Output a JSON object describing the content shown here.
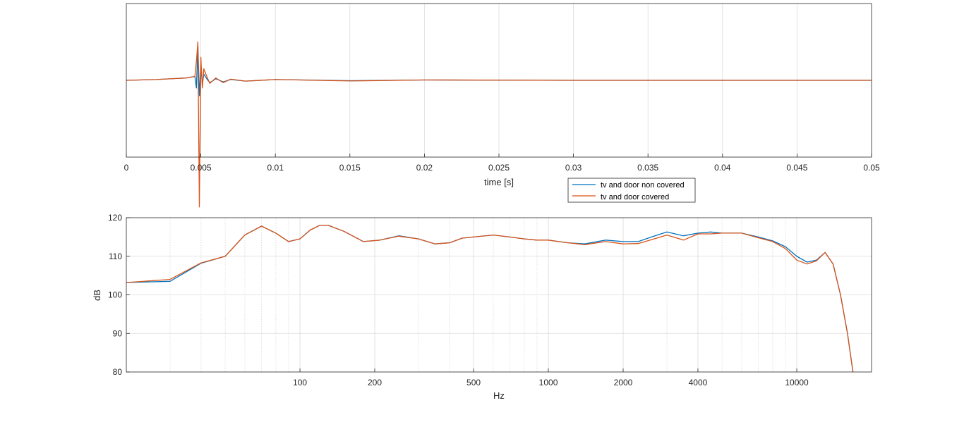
{
  "chart_data": [
    {
      "type": "line",
      "title": "",
      "xlabel": "time [s]",
      "ylabel": "",
      "xlim": [
        0,
        0.05
      ],
      "ylim": [
        -1,
        1
      ],
      "xscale": "linear",
      "grid": true,
      "xticks": [
        0,
        0.005,
        0.01,
        0.015,
        0.02,
        0.025,
        0.03,
        0.035,
        0.04,
        0.045,
        0.05
      ],
      "xtick_labels": [
        "0",
        "0.005",
        "0.01",
        "0.015",
        "0.02",
        "0.025",
        "0.03",
        "0.035",
        "0.04",
        "0.045",
        "0.05"
      ],
      "yticks_visible": false,
      "series": [
        {
          "name": "tv and door non covered",
          "color": "#0072BD",
          "x": [
            0,
            0.002,
            0.004,
            0.0046,
            0.0047,
            0.0048,
            0.0049,
            0.005,
            0.0051,
            0.0052,
            0.0054,
            0.0056,
            0.006,
            0.0065,
            0.007,
            0.008,
            0.01,
            0.015,
            0.02,
            0.03,
            0.05
          ],
          "y": [
            0,
            0.01,
            0.03,
            0.05,
            -0.1,
            0.45,
            -0.2,
            0.2,
            -0.05,
            0.08,
            0.02,
            -0.03,
            0.02,
            -0.02,
            0.01,
            -0.01,
            0.01,
            -0.005,
            0.005,
            0,
            0
          ]
        },
        {
          "name": "tv and door covered",
          "color": "#D95319",
          "x": [
            0,
            0.002,
            0.004,
            0.0046,
            0.0047,
            0.0048,
            0.0049,
            0.005,
            0.0051,
            0.0052,
            0.0054,
            0.0056,
            0.006,
            0.0065,
            0.007,
            0.008,
            0.01,
            0.015,
            0.02,
            0.03,
            0.05
          ],
          "y": [
            0,
            0.01,
            0.03,
            0.05,
            0.25,
            0.5,
            -1.65,
            0.3,
            -0.1,
            0.15,
            0.05,
            -0.04,
            0.03,
            -0.03,
            0.015,
            -0.01,
            0.01,
            -0.008,
            0.005,
            0,
            0
          ]
        }
      ]
    },
    {
      "type": "line",
      "title": "",
      "xlabel": "Hz",
      "ylabel": "dB",
      "xlim": [
        20,
        20000
      ],
      "ylim": [
        80,
        120
      ],
      "xscale": "log",
      "grid": true,
      "xticks": [
        100,
        200,
        500,
        1000,
        2000,
        4000,
        10000
      ],
      "xtick_labels": [
        "100",
        "200",
        "500",
        "1000",
        "2000",
        "4000",
        "10000"
      ],
      "yticks": [
        80,
        90,
        100,
        110,
        120
      ],
      "ytick_labels": [
        "80",
        "90",
        "100",
        "110",
        "120"
      ],
      "series": [
        {
          "name": "tv and door non covered",
          "color": "#0072BD",
          "x": [
            20,
            30,
            40,
            50,
            60,
            70,
            80,
            90,
            100,
            110,
            120,
            130,
            150,
            180,
            210,
            250,
            300,
            350,
            400,
            450,
            500,
            600,
            700,
            800,
            900,
            1000,
            1100,
            1200,
            1400,
            1700,
            2000,
            2300,
            2600,
            3000,
            3500,
            4000,
            4500,
            5000,
            6000,
            7000,
            8000,
            9000,
            10000,
            11000,
            12000,
            13000,
            14000,
            15000,
            16000,
            17000
          ],
          "y": [
            103.2,
            103.5,
            108.2,
            110.0,
            115.5,
            117.8,
            116.0,
            113.8,
            114.5,
            116.8,
            118.0,
            118.0,
            116.5,
            113.8,
            114.2,
            115.3,
            114.5,
            113.2,
            113.5,
            114.7,
            115.0,
            115.5,
            115.0,
            114.5,
            114.2,
            114.2,
            113.8,
            113.5,
            113.2,
            114.2,
            113.8,
            113.8,
            115.0,
            116.3,
            115.3,
            116.0,
            116.3,
            116.0,
            116.0,
            115.0,
            114.0,
            112.5,
            110.0,
            108.5,
            109.0,
            111.0,
            108.0,
            100.0,
            90.0,
            78.0
          ]
        },
        {
          "name": "tv and door covered",
          "color": "#D95319",
          "x": [
            20,
            30,
            40,
            50,
            60,
            70,
            80,
            90,
            100,
            110,
            120,
            130,
            150,
            180,
            210,
            250,
            300,
            350,
            400,
            450,
            500,
            600,
            700,
            800,
            900,
            1000,
            1100,
            1200,
            1400,
            1700,
            2000,
            2300,
            2600,
            3000,
            3500,
            4000,
            4500,
            5000,
            6000,
            7000,
            8000,
            9000,
            10000,
            11000,
            12000,
            13000,
            14000,
            15000,
            16000,
            17000
          ],
          "y": [
            103.2,
            104.0,
            108.3,
            110.0,
            115.5,
            117.8,
            116.0,
            113.8,
            114.5,
            116.8,
            118.0,
            118.0,
            116.5,
            113.8,
            114.2,
            115.2,
            114.5,
            113.2,
            113.5,
            114.7,
            115.0,
            115.5,
            115.0,
            114.5,
            114.2,
            114.2,
            113.8,
            113.5,
            113.0,
            113.8,
            113.2,
            113.3,
            114.3,
            115.5,
            114.2,
            115.8,
            115.8,
            116.0,
            116.0,
            114.8,
            113.8,
            112.0,
            109.0,
            108.0,
            108.8,
            111.0,
            108.0,
            100.0,
            90.0,
            78.0
          ]
        }
      ]
    }
  ],
  "legend": {
    "placement": "between-plots",
    "entries": [
      {
        "label": "tv and door non covered",
        "color": "#0072BD"
      },
      {
        "label": "tv and door covered",
        "color": "#D95319"
      }
    ]
  }
}
